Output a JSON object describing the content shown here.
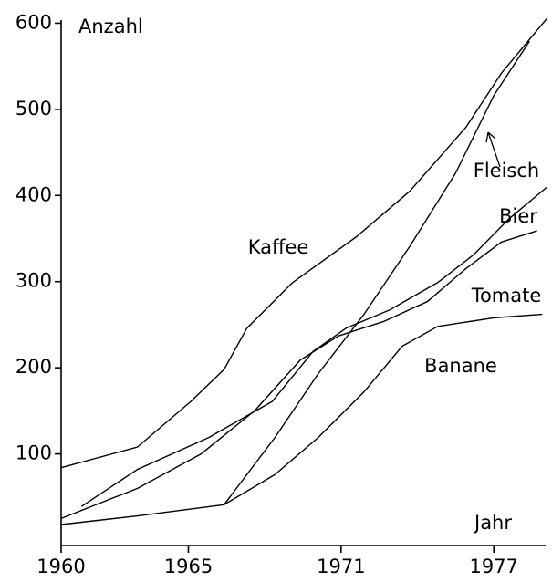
{
  "chart_data": {
    "type": "line",
    "y_label": "Anzahl",
    "x_label": "Jahr",
    "xlim": [
      1960,
      1979
    ],
    "xticks": [
      1960,
      1965,
      1971,
      1977
    ],
    "ylim": [
      0,
      610
    ],
    "yticks": [
      100,
      200,
      300,
      400,
      500,
      600
    ],
    "series": [
      {
        "name": "Kaffee",
        "color": "#000000",
        "x": [
          1960,
          1963,
          1965.1,
          1966.4,
          1967.3,
          1969.1,
          1971.6,
          1973.7,
          1975.9,
          1977.3,
          1979.1
        ],
        "values": [
          84,
          108,
          161,
          198,
          246,
          299,
          352,
          405,
          479,
          542,
          606
        ]
      },
      {
        "name": "Fleisch",
        "color": "#000000",
        "x": [
          1960,
          1963,
          1966.4,
          1968.4,
          1970.1,
          1971.9,
          1973.7,
          1975.5,
          1977,
          1978.4
        ],
        "values": [
          18,
          28,
          41,
          119,
          193,
          262,
          341,
          426,
          516,
          579
        ]
      },
      {
        "name": "Bier",
        "color": "#000000",
        "x": [
          1960.8,
          1963,
          1965.8,
          1968.3,
          1969.9,
          1971.2,
          1972.9,
          1974.8,
          1976.2,
          1977.6,
          1979.1
        ],
        "values": [
          39,
          82,
          119,
          161,
          219,
          246,
          267,
          299,
          331,
          373,
          410
        ]
      },
      {
        "name": "Tomate",
        "color": "#000000",
        "x": [
          1960,
          1963,
          1965.5,
          1967.6,
          1969.4,
          1970.9,
          1972.7,
          1974.4,
          1975.9,
          1977.3,
          1978.7
        ],
        "values": [
          25,
          60,
          100,
          150,
          209,
          237,
          254,
          277,
          315,
          346,
          359
        ]
      },
      {
        "name": "Banane",
        "color": "#000000",
        "x": [
          1966.4,
          1968.4,
          1970.1,
          1971.9,
          1973.4,
          1974.8,
          1977,
          1978.9
        ],
        "values": [
          41,
          76,
          119,
          172,
          225,
          248,
          258,
          262
        ]
      }
    ]
  }
}
